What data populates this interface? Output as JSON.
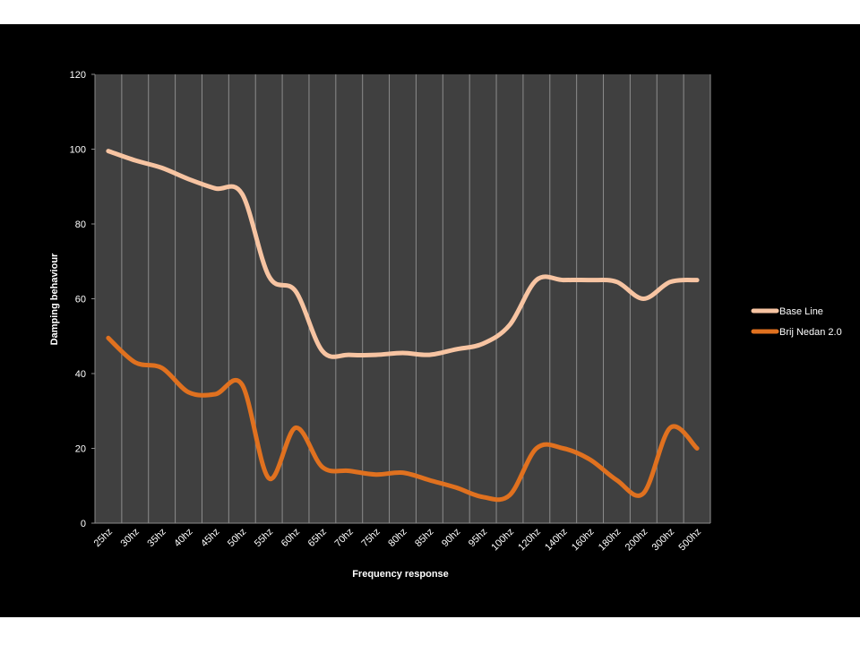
{
  "chart_data": {
    "type": "line",
    "title": "",
    "xlabel": "Frequency response",
    "ylabel": "Damping  behaviour",
    "ylim": [
      0,
      120
    ],
    "yticks": [
      "0",
      "20",
      "40",
      "60",
      "80",
      "100",
      "120"
    ],
    "categories": [
      "25hz",
      "30hz",
      "35hz",
      "40hz",
      "45hz",
      "50hz",
      "55hz",
      "60hz",
      "65hz",
      "70hz",
      "75hz",
      "80hz",
      "85hz",
      "90hz",
      "95hz",
      "100hz",
      "120hz",
      "140hz",
      "160hz",
      "180hz",
      "200hz",
      "300hz",
      "500hz"
    ],
    "series": [
      {
        "name": "Base Line",
        "color": "#f7c4a2",
        "values": [
          99.5,
          97,
          95,
          92,
          89.5,
          88,
          66,
          62,
          46,
          45,
          45,
          45.5,
          45,
          46.5,
          48,
          53,
          65,
          65,
          65,
          64.5,
          60,
          64.5,
          65
        ]
      },
      {
        "name": "Brij Nedan 2.0",
        "color": "#e0711f",
        "values": [
          49.5,
          43,
          41.5,
          35,
          34.5,
          37,
          12,
          25.5,
          15,
          14,
          13,
          13.5,
          11.5,
          9.5,
          7,
          7.5,
          20,
          20,
          17,
          11.5,
          8,
          25.5,
          20
        ]
      }
    ],
    "grid": true,
    "legend": "right",
    "plot_background": "#404040",
    "page_background": "#000000"
  }
}
